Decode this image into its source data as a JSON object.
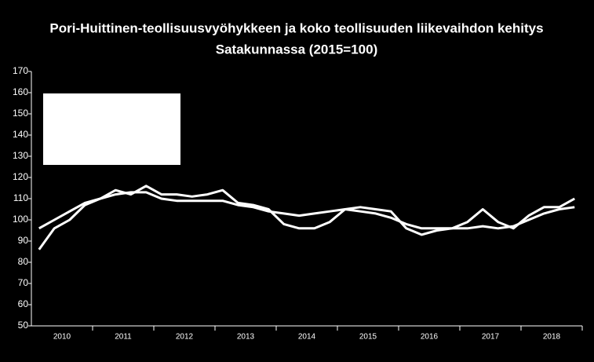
{
  "chart_data": {
    "type": "line",
    "title": [
      "Pori-Huittinen-teollisuusvyöhykkeen ja koko teollisuuden liikevaihdon kehitys",
      "Satakunnassa (2015=100)"
    ],
    "x": [
      2010.125,
      2010.375,
      2010.625,
      2010.875,
      2011.125,
      2011.375,
      2011.625,
      2011.875,
      2012.125,
      2012.375,
      2012.625,
      2012.875,
      2013.125,
      2013.375,
      2013.625,
      2013.875,
      2014.125,
      2014.375,
      2014.625,
      2014.875,
      2015.125,
      2015.375,
      2015.625,
      2015.875,
      2016.125,
      2016.375,
      2016.625,
      2016.875,
      2017.125,
      2017.375,
      2017.625,
      2017.875,
      2018.125,
      2018.375,
      2018.625,
      2018.875
    ],
    "series": [
      {
        "color": "#ffffff",
        "values": [
          86,
          96,
          100,
          107,
          110,
          114,
          112,
          116,
          112,
          112,
          111,
          112,
          114,
          108,
          107,
          105,
          98,
          96,
          96,
          99,
          105,
          106,
          105,
          104,
          96,
          93,
          95,
          96,
          99,
          105,
          99,
          96,
          102,
          106,
          106,
          110
        ]
      },
      {
        "color": "#ffffff",
        "values": [
          96,
          100,
          104,
          108,
          110,
          112,
          113,
          113,
          110,
          109,
          109,
          109,
          109,
          107,
          106,
          104,
          103,
          102,
          103,
          104,
          105,
          104,
          103,
          101,
          98,
          96,
          96,
          96,
          96,
          97,
          96,
          97,
          100,
          103,
          105,
          106
        ]
      }
    ],
    "xlim": [
      2010,
      2019
    ],
    "xticks": [
      {
        "value": 2010.5,
        "label": "2010"
      },
      {
        "value": 2011.5,
        "label": "2011"
      },
      {
        "value": 2012.5,
        "label": "2012"
      },
      {
        "value": 2013.5,
        "label": "2013"
      },
      {
        "value": 2014.5,
        "label": "2014"
      },
      {
        "value": 2015.5,
        "label": "2015"
      },
      {
        "value": 2016.5,
        "label": "2016"
      },
      {
        "value": 2017.5,
        "label": "2017"
      },
      {
        "value": 2018.5,
        "label": "2018"
      }
    ],
    "ylim": [
      50,
      170
    ],
    "yticks": [
      50,
      60,
      70,
      80,
      90,
      100,
      110,
      120,
      130,
      140,
      150,
      160,
      170
    ],
    "grid": false
  }
}
